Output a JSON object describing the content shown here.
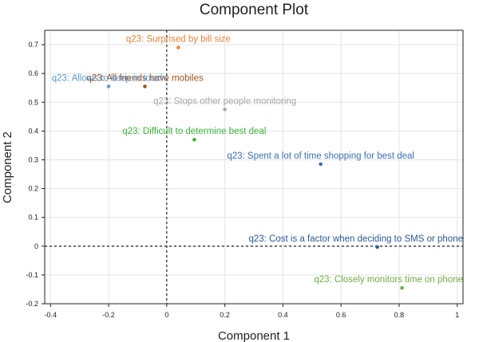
{
  "chart_data": {
    "type": "scatter",
    "title": "Component Plot",
    "xlabel": "Component 1",
    "ylabel": "Component 2",
    "xlim": [
      -0.42,
      1.02
    ],
    "ylim": [
      -0.2,
      0.75
    ],
    "xticks": [
      "-0.4",
      "-0.2",
      "0",
      "0.2",
      "0.4",
      "0.6",
      "0.8",
      "1"
    ],
    "yticks": [
      "-0.2",
      "-0.1",
      "0",
      "0.1",
      "0.2",
      "0.3",
      "0.4",
      "0.5",
      "0.6",
      "0.7"
    ],
    "grid": true,
    "reference_lines": {
      "x": 0,
      "y": 0
    },
    "points": [
      {
        "label": "q23: Surprised by bill size",
        "x": 0.04,
        "y": 0.69,
        "color": "#e8833a"
      },
      {
        "label": "q23: All friends have mobiles",
        "x": -0.075,
        "y": 0.555,
        "color": "#a0501c"
      },
      {
        "label": "q23: Allows to keep in touch",
        "x": -0.2,
        "y": 0.555,
        "color": "#5b9bd5"
      },
      {
        "label": "q23: Stops other people monitoring",
        "x": 0.2,
        "y": 0.475,
        "color": "#a6a6a6"
      },
      {
        "label": "q23: Difficult to determine best deal",
        "x": 0.095,
        "y": 0.37,
        "color": "#3cb43c"
      },
      {
        "label": "q23: Spent a lot of time shopping for best deal",
        "x": 0.53,
        "y": 0.285,
        "color": "#3a6fb0"
      },
      {
        "label": "q23: Cost is a factor when deciding to SMS or phone",
        "x": 0.725,
        "y": -0.003,
        "color": "#2a5a96"
      },
      {
        "label": "q23: Closely monitors time on phone",
        "x": 0.81,
        "y": -0.145,
        "color": "#70ad47"
      }
    ]
  }
}
